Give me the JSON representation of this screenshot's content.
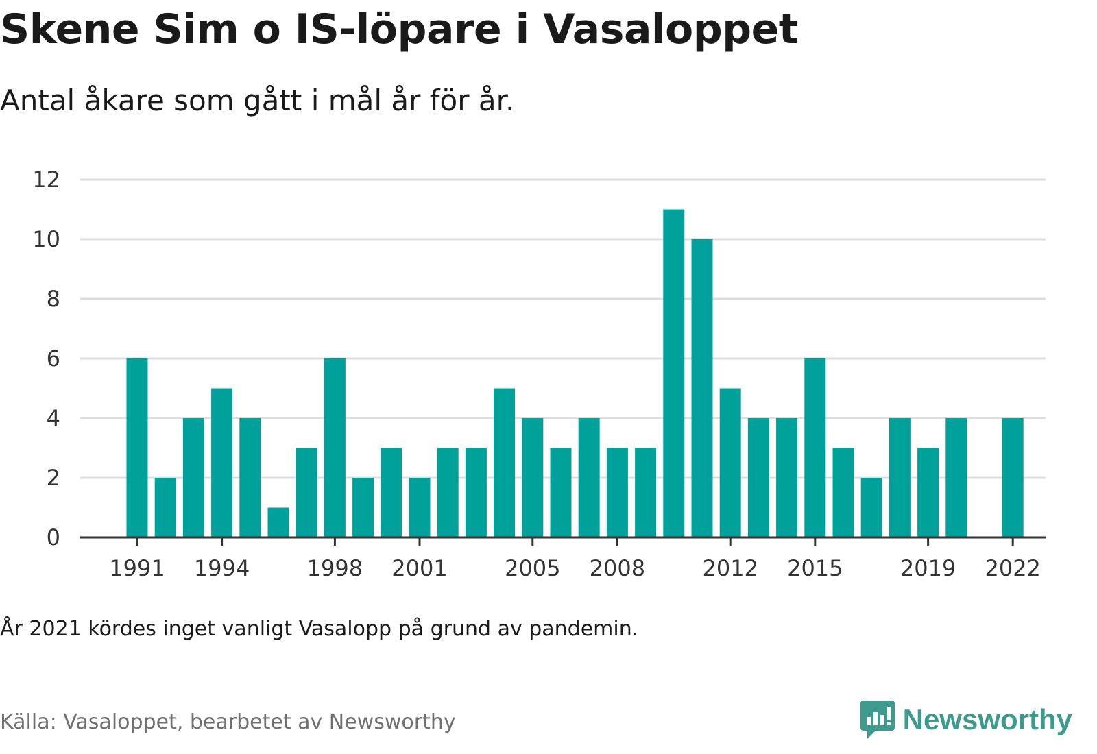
{
  "title": "Skene Sim o IS-löpare i Vasaloppet",
  "subtitle": "Antal åkare som gått i mål år för år.",
  "note": "År 2021 kördes inget vanligt Vasalopp på grund av pandemin.",
  "source": "Källa: Vasaloppet, bearbetet av Newsworthy",
  "brand": {
    "name": "Newsworthy",
    "icon": "newsworthy-logo-icon",
    "color": "#3e9a8d"
  },
  "chart_data": {
    "type": "bar",
    "title": "Skene Sim o IS-löpare i Vasaloppet",
    "subtitle": "Antal åkare som gått i mål år för år.",
    "x": [
      1991,
      1992,
      1993,
      1994,
      1995,
      1996,
      1997,
      1998,
      1999,
      2000,
      2001,
      2002,
      2003,
      2004,
      2005,
      2006,
      2007,
      2008,
      2009,
      2010,
      2011,
      2012,
      2013,
      2014,
      2015,
      2016,
      2017,
      2018,
      2019,
      2020,
      2021,
      2022
    ],
    "values": [
      6,
      2,
      4,
      5,
      4,
      1,
      3,
      6,
      2,
      3,
      2,
      3,
      3,
      5,
      4,
      3,
      4,
      3,
      3,
      11,
      10,
      5,
      4,
      4,
      6,
      3,
      2,
      4,
      3,
      4,
      null,
      4
    ],
    "x_tick_labels": [
      "1991",
      "1994",
      "1998",
      "2001",
      "2005",
      "2008",
      "2012",
      "2015",
      "2019",
      "2022"
    ],
    "y_ticks": [
      0,
      2,
      4,
      6,
      8,
      10,
      12
    ],
    "ylim": [
      0,
      12
    ],
    "grid": true,
    "bar_color": "#00a19a",
    "grid_color": "#dddddd",
    "axis_color": "#333333"
  }
}
